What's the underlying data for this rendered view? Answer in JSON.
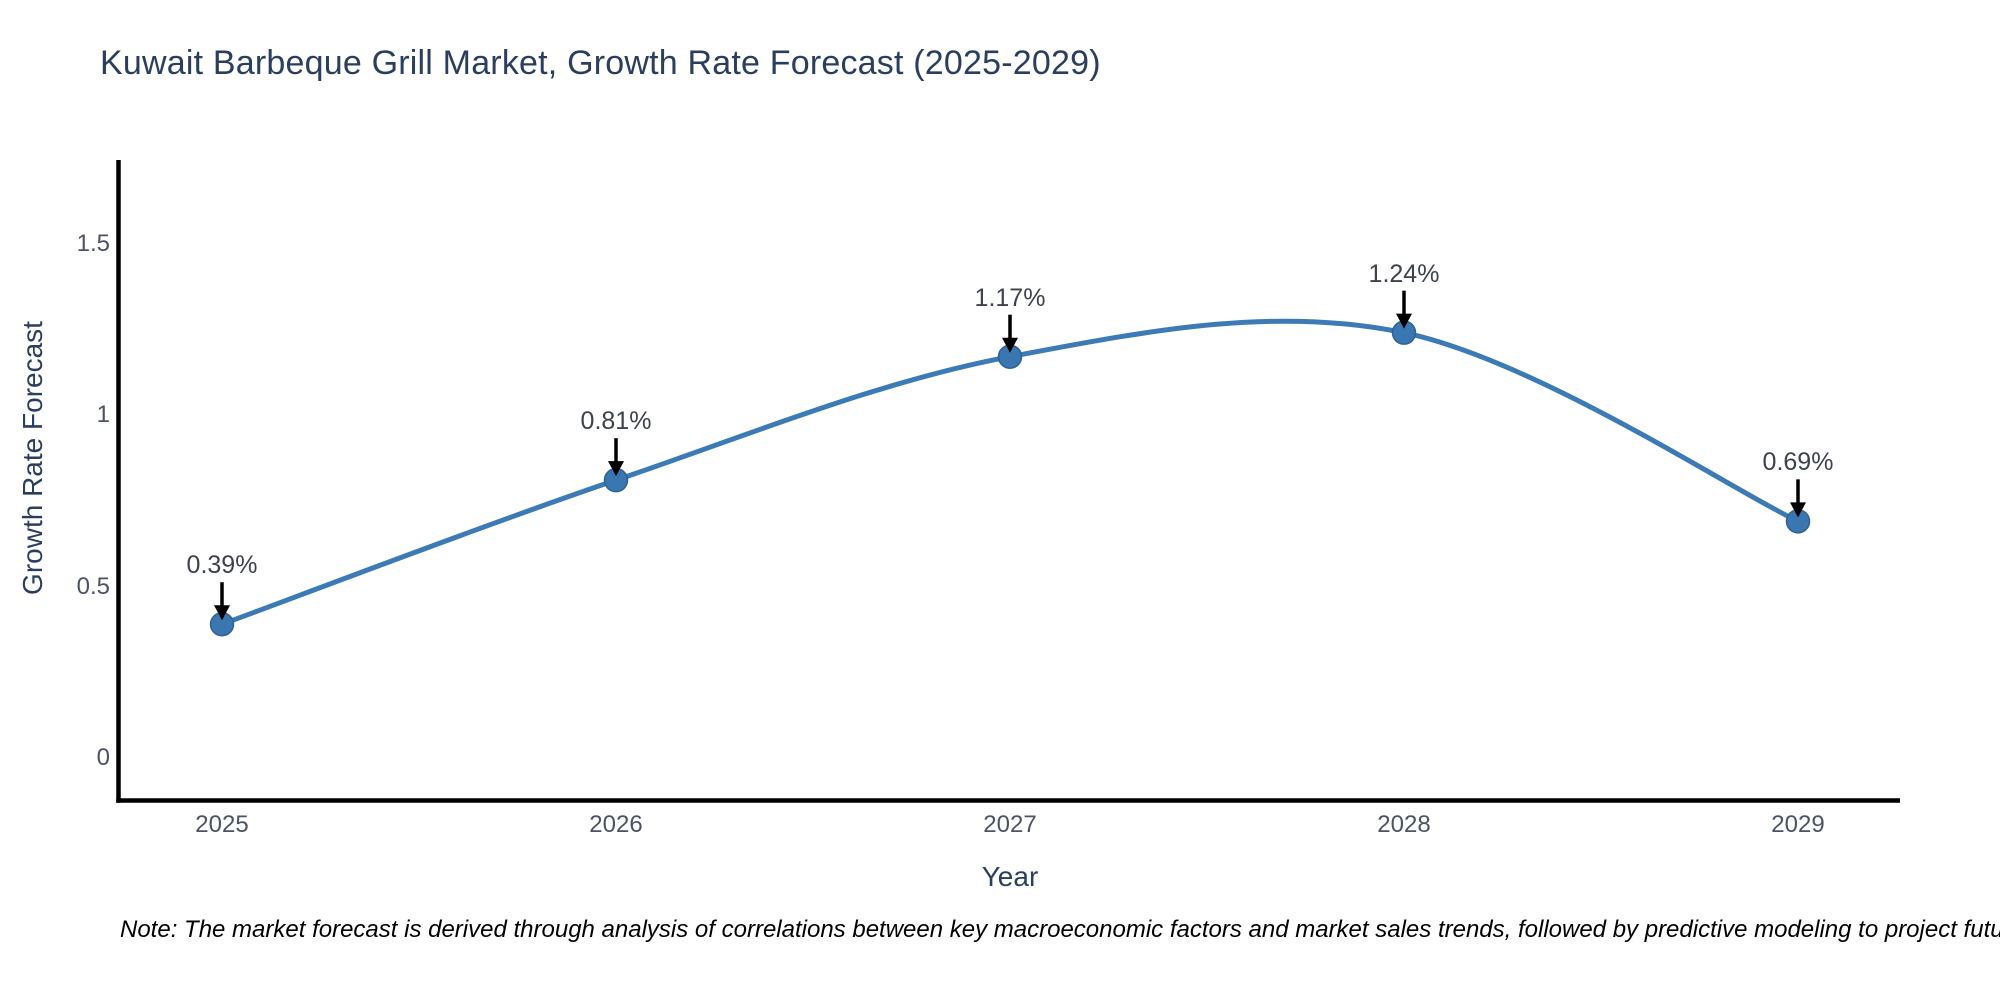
{
  "chart_data": {
    "type": "line",
    "title": "Kuwait Barbeque Grill Market, Growth Rate Forecast (2025-2029)",
    "xlabel": "Year",
    "ylabel": "Growth Rate Forecast",
    "note": "Note: The market forecast is derived through analysis of correlations between key macroeconomic factors and market sales trends, followed by predictive modeling to project future sales",
    "categories": [
      "2025",
      "2026",
      "2027",
      "2028",
      "2029"
    ],
    "series": [
      {
        "name": "Growth Rate Forecast",
        "values": [
          0.39,
          0.81,
          1.17,
          1.24,
          0.69
        ]
      }
    ],
    "point_labels": [
      "0.39%",
      "0.81%",
      "1.17%",
      "1.24%",
      "0.69%"
    ],
    "yticks": [
      0,
      0.5,
      1,
      1.5
    ],
    "ylim": [
      -0.12,
      1.74
    ],
    "grid": false,
    "legend": "none",
    "line_shape": "spline",
    "annotation_arrows": "black-down-arrow",
    "colors": {
      "line": "#3d7bb6",
      "marker_fill": "#3a76b0",
      "marker_edge": "#306296",
      "axis_line": "#000000",
      "title_text": "#2a3f5f",
      "tick_text": "#4c5366",
      "annotation_text": "#3d434d",
      "note_text": "#000000",
      "background": "#ffffff"
    }
  }
}
